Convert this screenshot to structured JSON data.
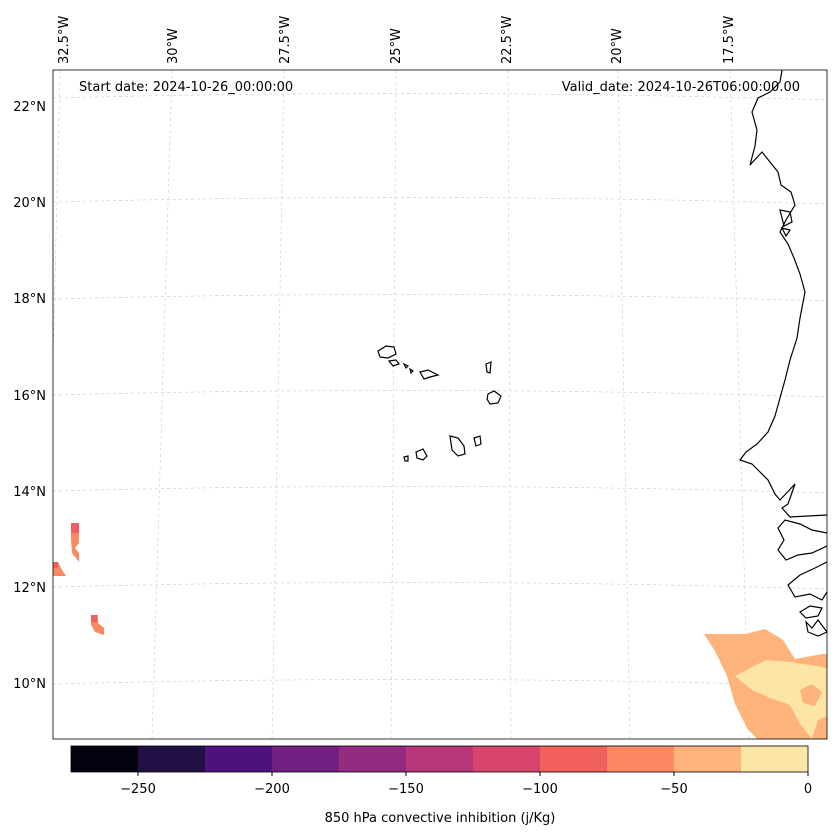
{
  "annotations": {
    "start_date": "Start date: 2024-10-26_00:00:00",
    "valid_date": "Valid_date: 2024-10-26T06:00:00.00"
  },
  "longitude_labels": [
    "32.5°W",
    "30°W",
    "27.5°W",
    "25°W",
    "22.5°W",
    "20°W",
    "17.5°W"
  ],
  "latitude_labels": [
    "22°N",
    "20°N",
    "18°N",
    "16°N",
    "14°N",
    "12°N",
    "10°N"
  ],
  "colorbar": {
    "label": "850 hPa convective inhibition (j/Kg)",
    "ticks": [
      "−250",
      "−200",
      "−150",
      "−100",
      "−50",
      "0"
    ],
    "colors": [
      "#04030f",
      "#221045",
      "#4f117b",
      "#721f81",
      "#932b80",
      "#b73779",
      "#d8456c",
      "#f1605d",
      "#fc8961",
      "#feb37b",
      "#fde5a6"
    ]
  },
  "chart_data": {
    "type": "map",
    "projection": "lambert-conformal",
    "region": "Cape Verde / West Africa coast",
    "lon_range": [
      -32.5,
      -17.5
    ],
    "lat_range": [
      9,
      22.5
    ],
    "variable": "850 hPa convective inhibition (j/Kg)",
    "color_scale": {
      "min": -275,
      "max": 0,
      "step": 25
    },
    "gridlines": true
  }
}
